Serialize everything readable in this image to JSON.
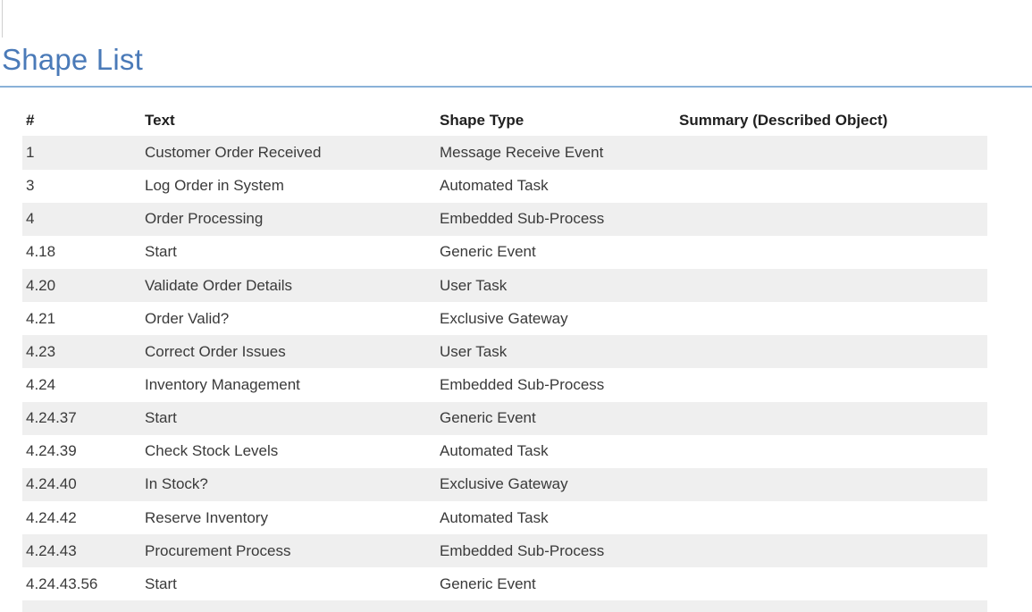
{
  "theme": {
    "title_color": "#4a7ab8",
    "rule_color": "#8ab1d8",
    "stripe_color": "#efefef",
    "text_color": "#3a3a3a",
    "header_text_color": "#1f1f1f"
  },
  "page": {
    "title": "Shape List"
  },
  "table": {
    "columns": [
      {
        "key": "num",
        "label": "#"
      },
      {
        "key": "text",
        "label": "Text"
      },
      {
        "key": "shape_type",
        "label": "Shape Type"
      },
      {
        "key": "summary",
        "label": "Summary (Described Object)"
      }
    ],
    "rows": [
      {
        "num": "1",
        "text": "Customer Order Received",
        "shape_type": "Message Receive Event",
        "summary": ""
      },
      {
        "num": "3",
        "text": "Log Order in System",
        "shape_type": "Automated Task",
        "summary": ""
      },
      {
        "num": "4",
        "text": "Order Processing",
        "shape_type": "Embedded Sub-Process",
        "summary": ""
      },
      {
        "num": "4.18",
        "text": "Start",
        "shape_type": "Generic Event",
        "summary": ""
      },
      {
        "num": "4.20",
        "text": "Validate Order Details",
        "shape_type": "User Task",
        "summary": ""
      },
      {
        "num": "4.21",
        "text": "Order Valid?",
        "shape_type": "Exclusive Gateway",
        "summary": ""
      },
      {
        "num": "4.23",
        "text": "Correct Order Issues",
        "shape_type": "User Task",
        "summary": ""
      },
      {
        "num": "4.24",
        "text": "Inventory Management",
        "shape_type": "Embedded Sub-Process",
        "summary": ""
      },
      {
        "num": "4.24.37",
        "text": "Start",
        "shape_type": "Generic Event",
        "summary": ""
      },
      {
        "num": "4.24.39",
        "text": "Check Stock Levels",
        "shape_type": "Automated Task",
        "summary": ""
      },
      {
        "num": "4.24.40",
        "text": "In Stock?",
        "shape_type": "Exclusive Gateway",
        "summary": ""
      },
      {
        "num": "4.24.42",
        "text": "Reserve Inventory",
        "shape_type": "Automated Task",
        "summary": ""
      },
      {
        "num": "4.24.43",
        "text": "Procurement Process",
        "shape_type": "Embedded Sub-Process",
        "summary": ""
      },
      {
        "num": "4.24.43.56",
        "text": "Start",
        "shape_type": "Generic Event",
        "summary": ""
      }
    ]
  }
}
